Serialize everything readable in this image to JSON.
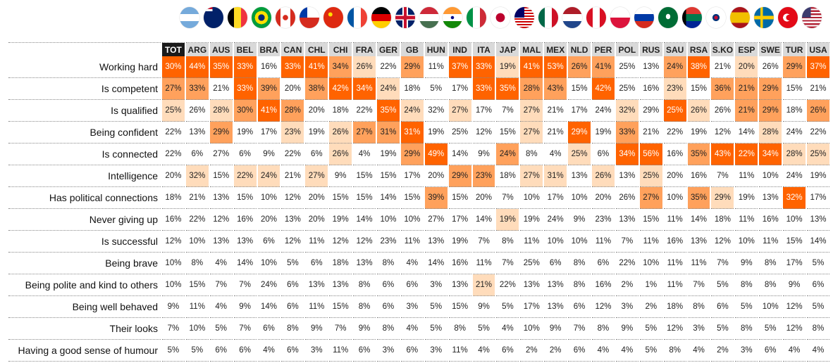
{
  "columns": [
    "TOT",
    "ARG",
    "AUS",
    "BEL",
    "BRA",
    "CAN",
    "CHL",
    "CHI",
    "FRA",
    "GER",
    "GB",
    "HUN",
    "IND",
    "ITA",
    "JAP",
    "MAL",
    "MEX",
    "NLD",
    "PER",
    "POL",
    "RUS",
    "SAU",
    "RSA",
    "S.KO",
    "ESP",
    "SWE",
    "TUR",
    "USA"
  ],
  "flags": [
    "flag-argentina",
    "flag-australia",
    "flag-belgium",
    "flag-brazil",
    "flag-canada",
    "flag-chile",
    "flag-china",
    "flag-france",
    "flag-germany",
    "flag-great-britain",
    "flag-hungary",
    "flag-india",
    "flag-italy",
    "flag-japan",
    "flag-malaysia",
    "flag-mexico",
    "flag-netherlands",
    "flag-peru",
    "flag-poland",
    "flag-russia",
    "flag-saudi-arabia",
    "flag-south-africa",
    "flag-south-korea",
    "flag-spain",
    "flag-sweden",
    "flag-turkey",
    "flag-usa"
  ],
  "level_colors": {
    "0": "#ffffff",
    "1": "#ffdcbb",
    "2": "#ffa15c",
    "3": "#ff6300"
  },
  "chart_data": {
    "type": "heatmap",
    "title": "",
    "value_unit": "%",
    "rows": [
      {
        "label": "Working hard",
        "values": [
          30,
          44,
          35,
          33,
          16,
          33,
          41,
          34,
          26,
          22,
          29,
          11,
          37,
          33,
          19,
          41,
          53,
          26,
          41,
          25,
          13,
          24,
          38,
          21,
          20,
          26,
          29,
          37
        ],
        "levels": [
          3,
          3,
          3,
          3,
          0,
          3,
          3,
          2,
          1,
          0,
          2,
          0,
          3,
          3,
          1,
          3,
          3,
          2,
          2,
          0,
          0,
          2,
          3,
          0,
          1,
          0,
          2,
          3
        ]
      },
      {
        "label": "Is competent",
        "values": [
          27,
          33,
          21,
          33,
          39,
          20,
          38,
          42,
          34,
          24,
          18,
          5,
          17,
          33,
          35,
          28,
          43,
          15,
          42,
          25,
          16,
          23,
          15,
          36,
          21,
          29,
          15,
          21
        ],
        "levels": [
          2,
          2,
          0,
          3,
          2,
          0,
          2,
          3,
          3,
          1,
          0,
          0,
          0,
          3,
          3,
          2,
          2,
          0,
          3,
          0,
          0,
          1,
          0,
          2,
          2,
          2,
          0,
          0
        ]
      },
      {
        "label": "Is qualified",
        "values": [
          25,
          26,
          28,
          30,
          41,
          28,
          20,
          18,
          22,
          35,
          24,
          32,
          27,
          17,
          7,
          27,
          21,
          17,
          24,
          32,
          29,
          25,
          26,
          26,
          21,
          29,
          18,
          26
        ],
        "levels": [
          1,
          0,
          1,
          2,
          3,
          2,
          0,
          0,
          0,
          3,
          1,
          0,
          1,
          0,
          0,
          1,
          0,
          0,
          0,
          1,
          0,
          3,
          1,
          0,
          2,
          2,
          0,
          2
        ]
      },
      {
        "label": "Being confident",
        "values": [
          22,
          13,
          29,
          19,
          17,
          23,
          19,
          26,
          27,
          31,
          31,
          19,
          25,
          12,
          15,
          27,
          21,
          29,
          19,
          33,
          21,
          22,
          19,
          12,
          14,
          28,
          24,
          22
        ],
        "levels": [
          0,
          0,
          2,
          0,
          0,
          1,
          0,
          1,
          2,
          2,
          3,
          0,
          0,
          0,
          0,
          1,
          0,
          3,
          0,
          2,
          0,
          0,
          0,
          0,
          0,
          1,
          0,
          0
        ]
      },
      {
        "label": "Is connected",
        "values": [
          22,
          6,
          27,
          6,
          9,
          22,
          6,
          26,
          4,
          19,
          29,
          49,
          14,
          9,
          24,
          8,
          4,
          25,
          6,
          34,
          56,
          16,
          35,
          43,
          22,
          34,
          28,
          25
        ],
        "levels": [
          0,
          0,
          0,
          0,
          0,
          0,
          0,
          1,
          0,
          0,
          2,
          3,
          0,
          0,
          2,
          0,
          0,
          1,
          0,
          3,
          3,
          0,
          2,
          3,
          3,
          3,
          1,
          1
        ]
      },
      {
        "label": "Intelligence",
        "values": [
          20,
          32,
          15,
          22,
          24,
          21,
          27,
          9,
          15,
          15,
          17,
          20,
          29,
          23,
          18,
          27,
          31,
          13,
          26,
          13,
          25,
          20,
          16,
          7,
          11,
          10,
          24,
          19
        ],
        "levels": [
          0,
          1,
          0,
          1,
          1,
          0,
          1,
          0,
          0,
          0,
          0,
          0,
          2,
          2,
          0,
          1,
          1,
          0,
          1,
          0,
          1,
          0,
          0,
          0,
          0,
          0,
          0,
          0
        ]
      },
      {
        "label": "Has political connections",
        "values": [
          18,
          21,
          13,
          15,
          10,
          12,
          20,
          15,
          15,
          14,
          15,
          39,
          15,
          20,
          7,
          10,
          17,
          10,
          20,
          26,
          27,
          10,
          35,
          29,
          19,
          13,
          32,
          17
        ],
        "levels": [
          0,
          0,
          0,
          0,
          0,
          0,
          0,
          0,
          0,
          0,
          0,
          2,
          0,
          0,
          0,
          0,
          0,
          0,
          0,
          0,
          2,
          0,
          2,
          1,
          0,
          0,
          3,
          0
        ]
      },
      {
        "label": "Never giving up",
        "values": [
          16,
          22,
          12,
          16,
          20,
          13,
          20,
          19,
          14,
          10,
          10,
          27,
          17,
          14,
          19,
          19,
          24,
          9,
          23,
          13,
          15,
          11,
          14,
          18,
          11,
          16,
          10,
          13
        ],
        "levels": [
          0,
          0,
          0,
          0,
          0,
          0,
          0,
          0,
          0,
          0,
          0,
          0,
          0,
          0,
          1,
          0,
          0,
          0,
          0,
          0,
          0,
          0,
          0,
          0,
          0,
          0,
          0,
          0
        ]
      },
      {
        "label": "Is successful",
        "values": [
          12,
          10,
          13,
          13,
          6,
          12,
          11,
          12,
          12,
          23,
          11,
          13,
          19,
          7,
          8,
          11,
          10,
          10,
          11,
          7,
          11,
          16,
          13,
          12,
          10,
          11,
          15,
          14
        ],
        "levels": [
          0,
          0,
          0,
          0,
          0,
          0,
          0,
          0,
          0,
          0,
          0,
          0,
          0,
          0,
          0,
          0,
          0,
          0,
          0,
          0,
          0,
          0,
          0,
          0,
          0,
          0,
          0,
          0
        ]
      },
      {
        "label": "Being brave",
        "values": [
          10,
          8,
          4,
          14,
          10,
          5,
          6,
          18,
          13,
          8,
          4,
          14,
          16,
          11,
          7,
          25,
          6,
          8,
          6,
          22,
          10,
          11,
          11,
          7,
          9,
          8,
          17,
          5
        ],
        "levels": [
          0,
          0,
          0,
          0,
          0,
          0,
          0,
          0,
          0,
          0,
          0,
          0,
          0,
          0,
          0,
          0,
          0,
          0,
          0,
          0,
          0,
          0,
          0,
          0,
          0,
          0,
          0,
          0
        ]
      },
      {
        "label": "Being polite and kind to others",
        "values": [
          10,
          15,
          7,
          7,
          24,
          6,
          13,
          13,
          8,
          6,
          6,
          3,
          13,
          21,
          22,
          13,
          13,
          8,
          16,
          2,
          1,
          11,
          7,
          5,
          8,
          8,
          9,
          6
        ],
        "levels": [
          0,
          0,
          0,
          0,
          0,
          0,
          0,
          0,
          0,
          0,
          0,
          0,
          0,
          1,
          0,
          0,
          0,
          0,
          0,
          0,
          0,
          0,
          0,
          0,
          0,
          0,
          0,
          0
        ]
      },
      {
        "label": "Being well behaved",
        "values": [
          9,
          11,
          4,
          9,
          14,
          6,
          11,
          15,
          8,
          6,
          3,
          5,
          15,
          9,
          5,
          17,
          13,
          6,
          12,
          3,
          2,
          18,
          8,
          6,
          5,
          10,
          12,
          5
        ],
        "levels": [
          0,
          0,
          0,
          0,
          0,
          0,
          0,
          0,
          0,
          0,
          0,
          0,
          0,
          0,
          0,
          0,
          0,
          0,
          0,
          0,
          0,
          0,
          0,
          0,
          0,
          0,
          0,
          0
        ]
      },
      {
        "label": "Their looks",
        "values": [
          7,
          10,
          5,
          7,
          6,
          8,
          9,
          7,
          9,
          8,
          4,
          5,
          8,
          5,
          4,
          10,
          9,
          7,
          8,
          9,
          5,
          12,
          3,
          5,
          8,
          5,
          12,
          8
        ],
        "levels": [
          0,
          0,
          0,
          0,
          0,
          0,
          0,
          0,
          0,
          0,
          0,
          0,
          0,
          0,
          0,
          0,
          0,
          0,
          0,
          0,
          0,
          0,
          0,
          0,
          0,
          0,
          0,
          0
        ]
      },
      {
        "label": "Having a good sense of humour",
        "values": [
          5,
          5,
          6,
          6,
          4,
          6,
          3,
          11,
          6,
          3,
          6,
          3,
          11,
          4,
          6,
          2,
          2,
          6,
          4,
          4,
          5,
          8,
          4,
          2,
          3,
          6,
          4,
          4
        ],
        "levels": [
          0,
          0,
          0,
          0,
          0,
          0,
          0,
          0,
          0,
          0,
          0,
          0,
          0,
          0,
          0,
          0,
          0,
          0,
          0,
          0,
          0,
          0,
          0,
          0,
          0,
          0,
          0,
          0
        ]
      }
    ]
  }
}
